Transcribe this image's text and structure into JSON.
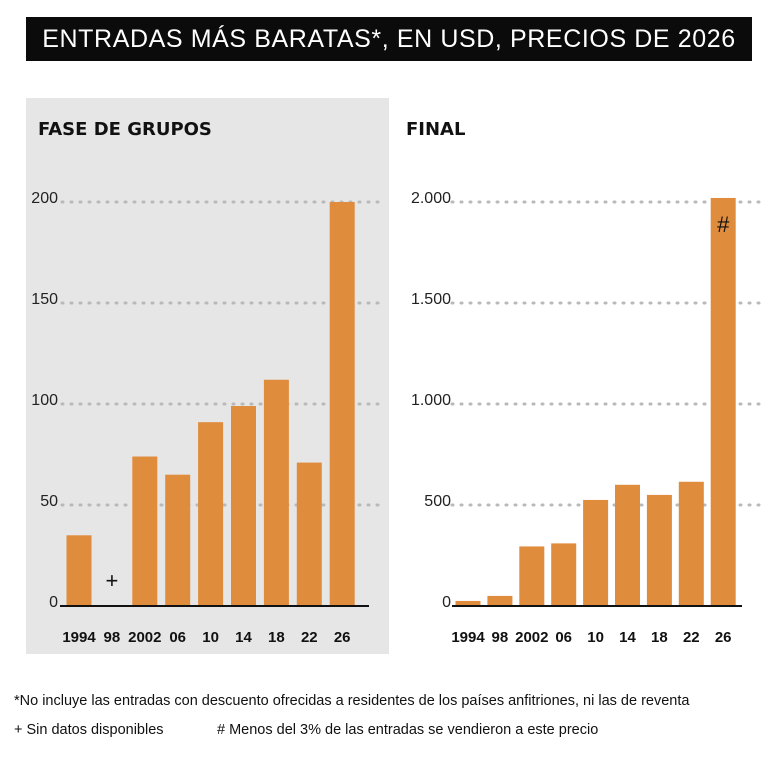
{
  "header": {
    "title": "ENTRADAS MÁS BARATAS*, EN USD, PRECIOS DE 2026"
  },
  "chart_data": [
    {
      "type": "bar",
      "title": "FASE DE GRUPOS",
      "categories": [
        "1994",
        "98",
        "2002",
        "06",
        "10",
        "14",
        "18",
        "22",
        "26"
      ],
      "values": [
        35,
        null,
        74,
        65,
        91,
        99,
        112,
        71,
        200
      ],
      "markers": {
        "98": "+"
      },
      "ylim": [
        0,
        200
      ],
      "yticks": [
        0,
        50,
        100,
        150,
        200
      ],
      "ytick_labels": [
        "0",
        "50",
        "100",
        "150",
        "200"
      ],
      "background": "#e6e6e6",
      "bar_color": "#e08c3d"
    },
    {
      "type": "bar",
      "title": "FINAL",
      "categories": [
        "1994",
        "98",
        "2002",
        "06",
        "10",
        "14",
        "18",
        "22",
        "26"
      ],
      "values": [
        25,
        50,
        295,
        310,
        525,
        600,
        550,
        615,
        2020
      ],
      "markers": {
        "26": "#"
      },
      "ylim": [
        0,
        2000
      ],
      "yticks": [
        0,
        500,
        1000,
        1500,
        2000
      ],
      "ytick_labels": [
        "0",
        "500",
        "1.000",
        "1.500",
        "2.000"
      ],
      "background": "#ffffff",
      "bar_color": "#e08c3d"
    }
  ],
  "footnotes": {
    "asterisk": "*No incluye las entradas con descuento ofrecidas a residentes de los países anfitriones, ni las de reventa",
    "plus": "+ Sin datos disponibles",
    "hash": "# Menos del 3% de las entradas se vendieron a este precio"
  }
}
